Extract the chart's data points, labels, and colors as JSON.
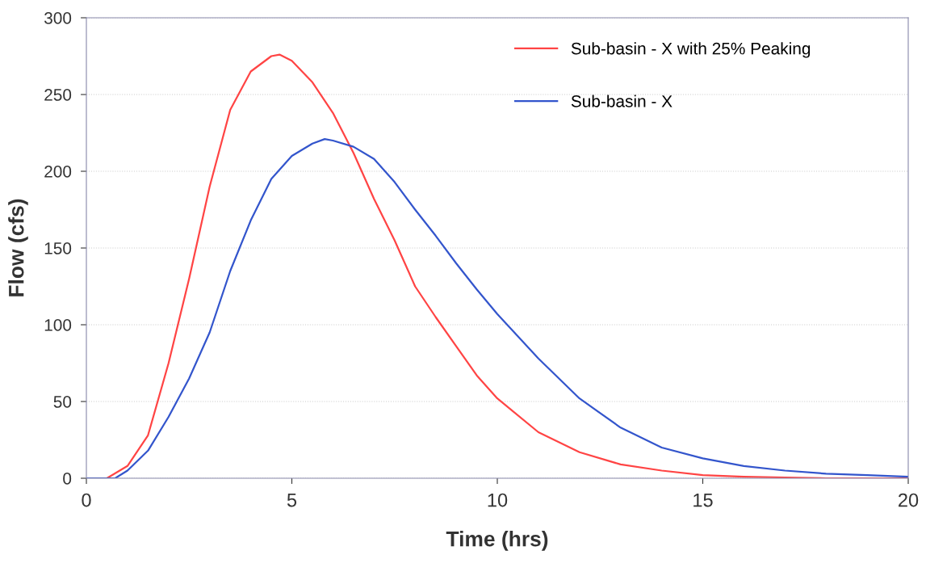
{
  "chart_data": {
    "type": "line",
    "xlabel": "Time (hrs)",
    "ylabel": "Flow (cfs)",
    "xlim": [
      0,
      20
    ],
    "ylim": [
      0,
      300
    ],
    "xticks": [
      0,
      5,
      10,
      15,
      20
    ],
    "yticks": [
      0,
      50,
      100,
      150,
      200,
      250,
      300
    ],
    "grid": "y",
    "legend": "top right",
    "line_style": "solid",
    "marker": "none",
    "series": [
      {
        "name": "Sub-basin - X with 25% Peaking",
        "color": "#ff4444",
        "x": [
          0,
          0.5,
          1,
          1.5,
          2,
          2.5,
          3,
          3.5,
          4,
          4.5,
          4.7,
          5,
          5.5,
          6,
          6.5,
          7,
          7.5,
          8,
          8.5,
          9,
          9.5,
          10,
          11,
          12,
          13,
          14,
          15,
          16,
          17,
          18,
          20
        ],
        "values": [
          0,
          0,
          8,
          28,
          75,
          130,
          190,
          240,
          265,
          275,
          276,
          272,
          258,
          238,
          212,
          182,
          155,
          125,
          105,
          86,
          67,
          52,
          30,
          17,
          9,
          5,
          2,
          1,
          0.5,
          0,
          0
        ]
      },
      {
        "name": "Sub-basin - X",
        "color": "#3355cc",
        "x": [
          0,
          0.5,
          0.7,
          1,
          1.5,
          2,
          2.5,
          3,
          3.5,
          4,
          4.5,
          5,
          5.5,
          5.8,
          6,
          6.5,
          7,
          7.5,
          8,
          8.5,
          9,
          9.5,
          10,
          11,
          12,
          13,
          14,
          15,
          16,
          17,
          18,
          19,
          20
        ],
        "values": [
          0,
          0,
          0,
          5,
          18,
          40,
          65,
          95,
          135,
          168,
          195,
          210,
          218,
          221,
          220,
          216,
          208,
          193,
          175,
          158,
          140,
          123,
          107,
          78,
          52,
          33,
          20,
          13,
          8,
          5,
          3,
          2,
          1
        ]
      }
    ]
  }
}
